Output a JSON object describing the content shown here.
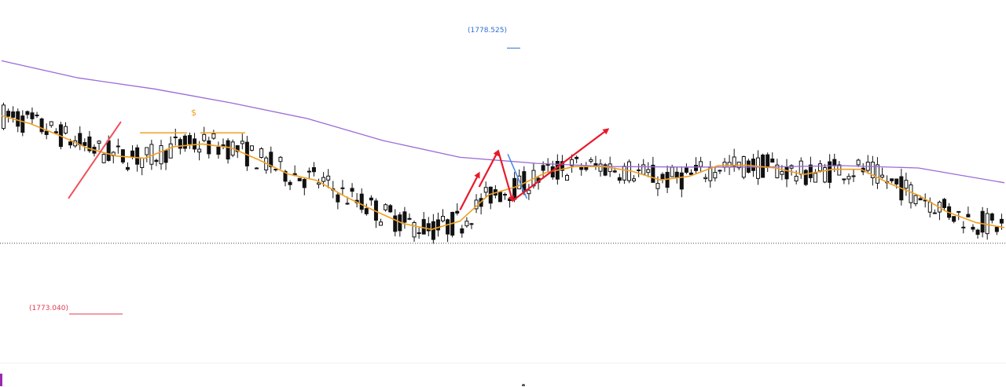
{
  "colors": {
    "background": "#ffffff",
    "candle": "#111111",
    "ema_fast": "#f0a020",
    "ma_slow": "#9b6ad8",
    "arrow": "#e8192c",
    "trend_line": "#f0505a",
    "high_label": "#2f6fd1",
    "low_label": "#e03b52",
    "reference_dotted": "#444444"
  },
  "labels": {
    "high": "(1778.525)",
    "low": "(1773.040)",
    "dollar_marker": "$"
  },
  "chart_data": {
    "type": "candlestick",
    "title": "",
    "price_range": [
      1772.6,
      1778.8
    ],
    "high_marker": 1778.525,
    "low_marker": 1773.04,
    "reference_level": 1774.13,
    "candle_count": 210,
    "ema_fast_path": [
      [
        0,
        1776.89
      ],
      [
        6,
        1776.72
      ],
      [
        12,
        1776.47
      ],
      [
        18,
        1776.19
      ],
      [
        24,
        1776.02
      ],
      [
        30,
        1775.97
      ],
      [
        36,
        1776.22
      ],
      [
        42,
        1776.28
      ],
      [
        48,
        1776.2
      ],
      [
        54,
        1775.93
      ],
      [
        60,
        1775.63
      ],
      [
        66,
        1775.49
      ],
      [
        72,
        1775.14
      ],
      [
        78,
        1774.84
      ],
      [
        84,
        1774.56
      ],
      [
        90,
        1774.43
      ],
      [
        96,
        1774.61
      ],
      [
        102,
        1775.18
      ],
      [
        108,
        1775.36
      ],
      [
        114,
        1775.66
      ],
      [
        120,
        1775.79
      ],
      [
        126,
        1775.79
      ],
      [
        132,
        1775.69
      ],
      [
        138,
        1775.5
      ],
      [
        144,
        1775.58
      ],
      [
        150,
        1775.81
      ],
      [
        156,
        1775.82
      ],
      [
        162,
        1775.76
      ],
      [
        168,
        1775.62
      ],
      [
        174,
        1775.73
      ],
      [
        180,
        1775.73
      ],
      [
        186,
        1775.42
      ],
      [
        192,
        1775.17
      ],
      [
        198,
        1774.81
      ],
      [
        204,
        1774.58
      ],
      [
        210,
        1774.47
      ]
    ],
    "ma_slow_path": [
      [
        0,
        1778.08
      ],
      [
        16,
        1777.71
      ],
      [
        32,
        1777.47
      ],
      [
        48,
        1777.17
      ],
      [
        64,
        1776.83
      ],
      [
        80,
        1776.35
      ],
      [
        96,
        1775.99
      ],
      [
        112,
        1775.86
      ],
      [
        128,
        1775.79
      ],
      [
        144,
        1775.78
      ],
      [
        160,
        1775.78
      ],
      [
        176,
        1775.81
      ],
      [
        192,
        1775.76
      ],
      [
        210,
        1775.44
      ]
    ],
    "arrows": [
      {
        "from": [
          96,
          1774.85
        ],
        "to": [
          100,
          1775.65
        ]
      },
      {
        "from": [
          100,
          1775.35
        ],
        "to": [
          104,
          1776.13
        ]
      },
      {
        "from": [
          104,
          1776.13
        ],
        "to": [
          107,
          1775.05
        ]
      },
      {
        "from": [
          107,
          1775.05
        ],
        "to": [
          127,
          1776.6
        ]
      }
    ],
    "trend_lines": [
      {
        "from": [
          14,
          1775.1
        ],
        "to": [
          25,
          1776.76
        ]
      }
    ],
    "blue_line": {
      "from": [
        106,
        1776.06
      ],
      "to": [
        110,
        1775.1
      ]
    },
    "dollar_line": {
      "from": [
        29,
        1776.52
      ],
      "to": [
        51,
        1776.52
      ],
      "label": "$"
    }
  }
}
